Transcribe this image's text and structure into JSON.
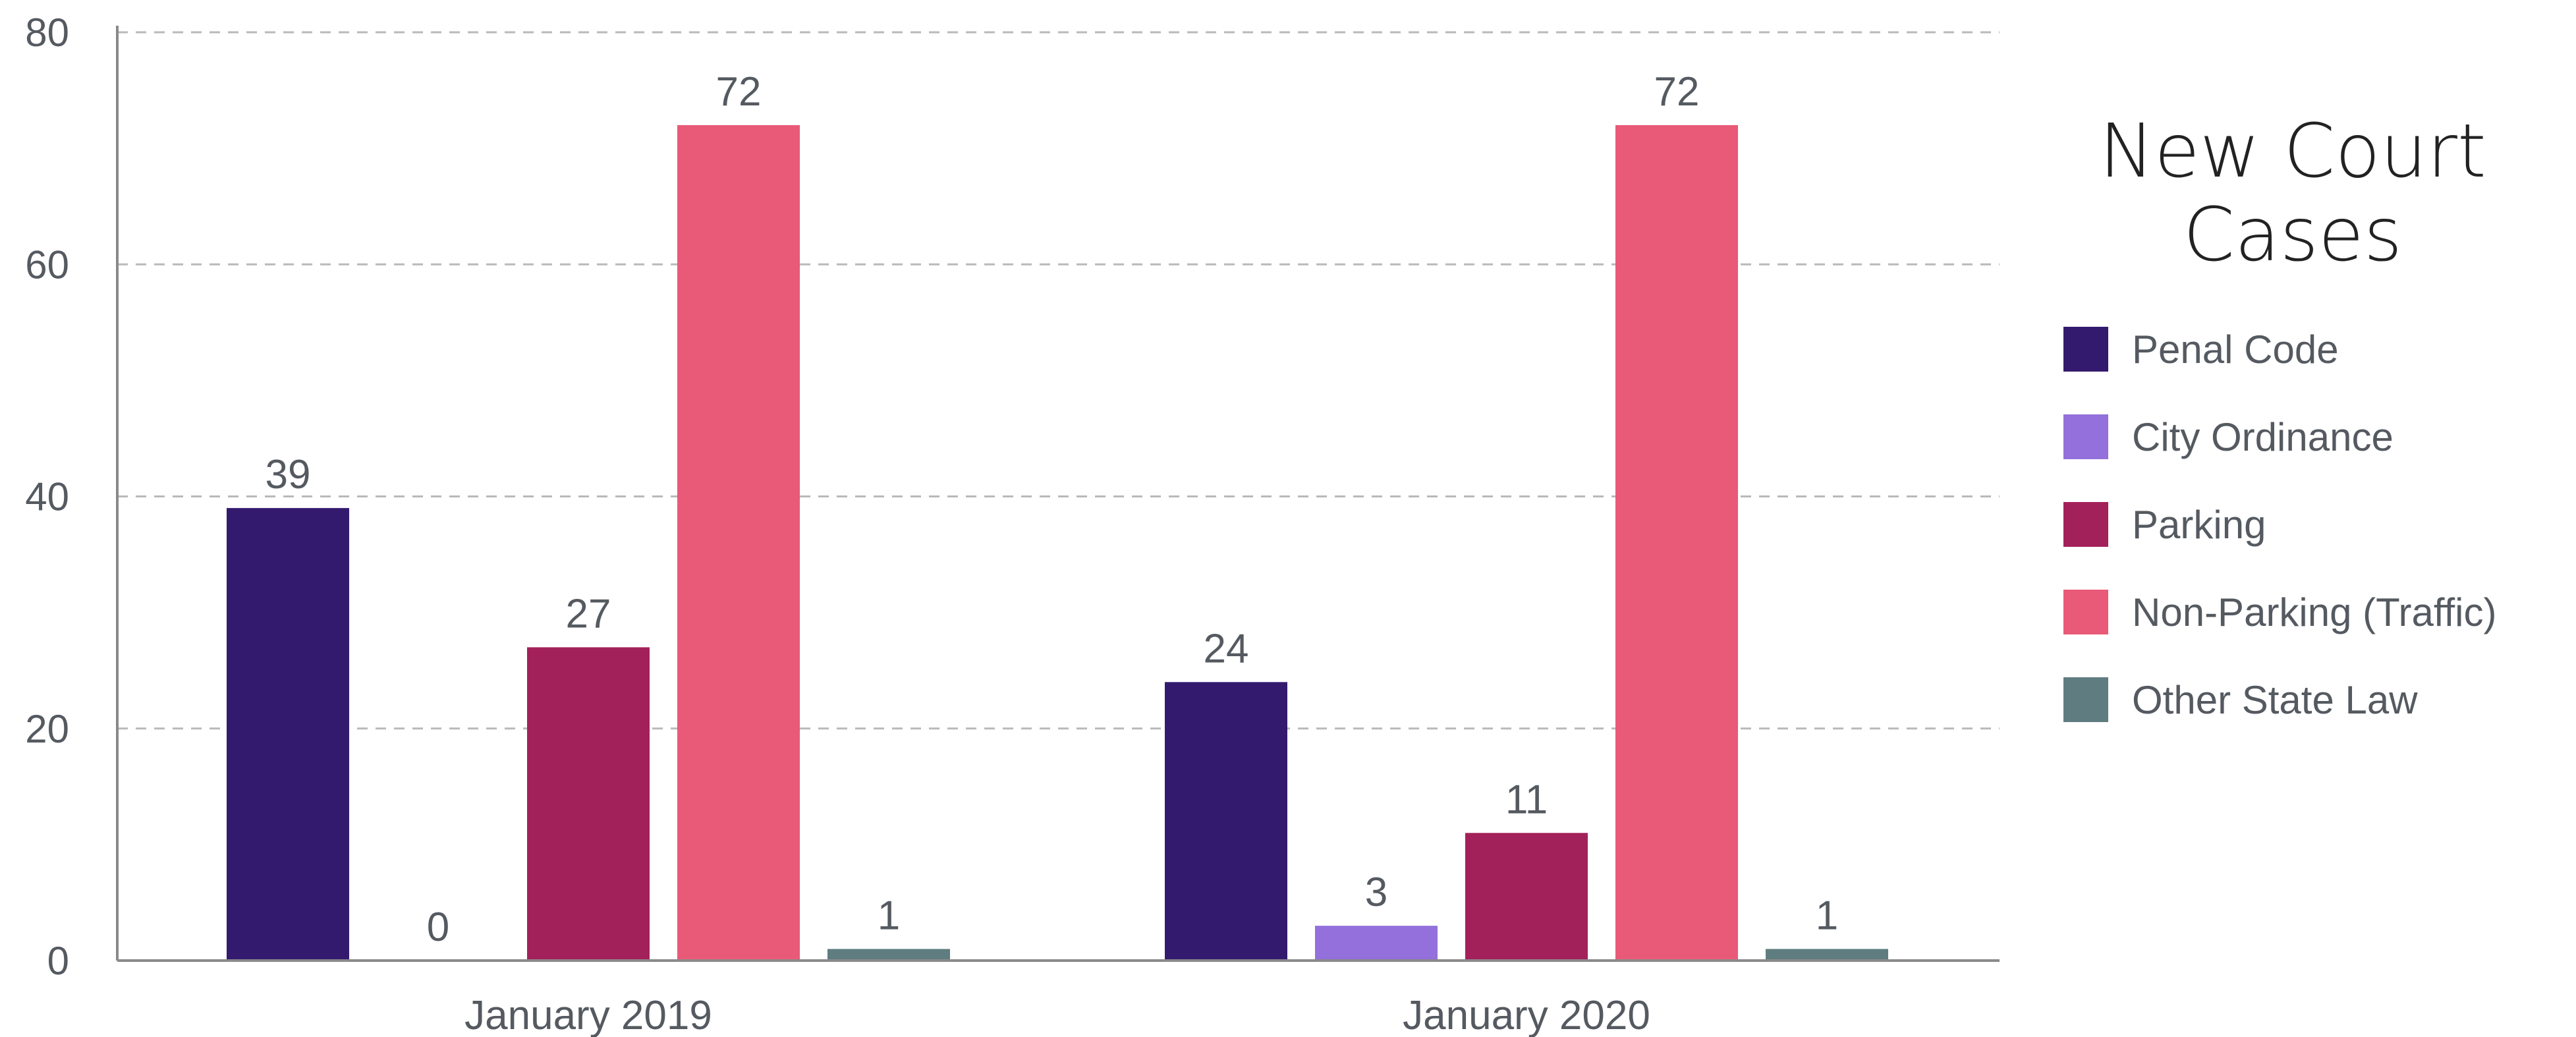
{
  "chart_data": {
    "type": "bar",
    "title": "New Court Cases",
    "categories": [
      "January 2019",
      "January 2020"
    ],
    "series": [
      {
        "name": "Penal Code",
        "color": "#341a6e",
        "values": [
          39,
          24
        ]
      },
      {
        "name": "City Ordinance",
        "color": "#9370db",
        "values": [
          0,
          3
        ]
      },
      {
        "name": "Parking",
        "color": "#a3215a",
        "values": [
          27,
          11
        ]
      },
      {
        "name": "Non-Parking (Traffic)",
        "color": "#e95a78",
        "values": [
          72,
          72
        ]
      },
      {
        "name": "Other State Law",
        "color": "#5f7d80",
        "values": [
          1,
          1
        ]
      }
    ],
    "ylim": [
      0,
      80
    ],
    "yticks": [
      "0",
      "20",
      "40",
      "60",
      "80"
    ],
    "grid": true,
    "legend_position": "right",
    "xlabel": "",
    "ylabel": ""
  }
}
